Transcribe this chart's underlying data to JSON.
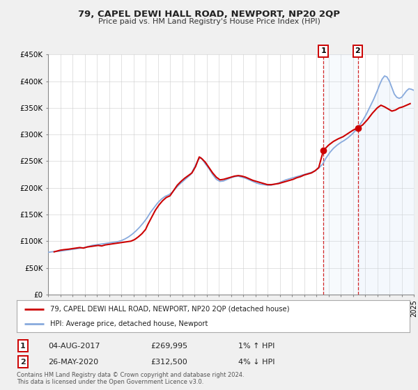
{
  "title": "79, CAPEL DEWI HALL ROAD, NEWPORT, NP20 2QP",
  "subtitle": "Price paid vs. HM Land Registry's House Price Index (HPI)",
  "background_color": "#f0f0f0",
  "plot_bg_color": "#ffffff",
  "grid_color": "#cccccc",
  "price_line_color": "#cc0000",
  "hpi_line_color": "#88aadd",
  "hpi_fill_color": "#cce0f5",
  "marker1_date_num": 2017.58,
  "marker1_price": 269995,
  "marker2_date_num": 2020.4,
  "marker2_price": 312500,
  "legend_label1": "79, CAPEL DEWI HALL ROAD, NEWPORT, NP20 2QP (detached house)",
  "legend_label2": "HPI: Average price, detached house, Newport",
  "marker1_date_str": "04-AUG-2017",
  "marker1_price_str": "£269,995",
  "marker1_hpi_str": "1% ↑ HPI",
  "marker2_date_str": "26-MAY-2020",
  "marker2_price_str": "£312,500",
  "marker2_hpi_str": "4% ↓ HPI",
  "footer1": "Contains HM Land Registry data © Crown copyright and database right 2024.",
  "footer2": "This data is licensed under the Open Government Licence v3.0.",
  "ylim": [
    0,
    450000
  ],
  "xlim": [
    1995,
    2025
  ],
  "yticks": [
    0,
    50000,
    100000,
    150000,
    200000,
    250000,
    300000,
    350000,
    400000,
    450000
  ],
  "ytick_labels": [
    "£0",
    "£50K",
    "£100K",
    "£150K",
    "£200K",
    "£250K",
    "£300K",
    "£350K",
    "£400K",
    "£450K"
  ],
  "price_data": [
    [
      1995.5,
      80000
    ],
    [
      1996.0,
      83000
    ],
    [
      1996.3,
      84000
    ],
    [
      1996.7,
      85000
    ],
    [
      1997.0,
      86000
    ],
    [
      1997.3,
      87000
    ],
    [
      1997.6,
      88000
    ],
    [
      1997.9,
      87000
    ],
    [
      1998.2,
      89000
    ],
    [
      1998.5,
      90000
    ],
    [
      1998.8,
      91000
    ],
    [
      1999.1,
      92000
    ],
    [
      1999.4,
      91000
    ],
    [
      1999.7,
      93000
    ],
    [
      2000.0,
      94000
    ],
    [
      2000.3,
      95000
    ],
    [
      2000.6,
      96000
    ],
    [
      2000.9,
      97000
    ],
    [
      2001.2,
      98000
    ],
    [
      2001.5,
      99000
    ],
    [
      2001.8,
      100000
    ],
    [
      2002.1,
      103000
    ],
    [
      2002.4,
      108000
    ],
    [
      2002.7,
      114000
    ],
    [
      2003.0,
      122000
    ],
    [
      2003.2,
      132000
    ],
    [
      2003.5,
      145000
    ],
    [
      2003.8,
      158000
    ],
    [
      2004.1,
      168000
    ],
    [
      2004.4,
      176000
    ],
    [
      2004.7,
      182000
    ],
    [
      2005.0,
      185000
    ],
    [
      2005.3,
      195000
    ],
    [
      2005.6,
      205000
    ],
    [
      2005.9,
      212000
    ],
    [
      2006.2,
      218000
    ],
    [
      2006.5,
      223000
    ],
    [
      2006.8,
      228000
    ],
    [
      2007.1,
      240000
    ],
    [
      2007.4,
      258000
    ],
    [
      2007.6,
      255000
    ],
    [
      2007.9,
      248000
    ],
    [
      2008.2,
      238000
    ],
    [
      2008.5,
      228000
    ],
    [
      2008.8,
      220000
    ],
    [
      2009.1,
      215000
    ],
    [
      2009.4,
      216000
    ],
    [
      2009.7,
      218000
    ],
    [
      2010.0,
      220000
    ],
    [
      2010.3,
      222000
    ],
    [
      2010.6,
      223000
    ],
    [
      2010.9,
      222000
    ],
    [
      2011.2,
      220000
    ],
    [
      2011.5,
      217000
    ],
    [
      2011.8,
      214000
    ],
    [
      2012.1,
      212000
    ],
    [
      2012.4,
      210000
    ],
    [
      2012.7,
      208000
    ],
    [
      2013.0,
      206000
    ],
    [
      2013.3,
      206000
    ],
    [
      2013.6,
      207000
    ],
    [
      2013.9,
      208000
    ],
    [
      2014.2,
      210000
    ],
    [
      2014.5,
      212000
    ],
    [
      2014.8,
      214000
    ],
    [
      2015.1,
      216000
    ],
    [
      2015.4,
      219000
    ],
    [
      2015.7,
      221000
    ],
    [
      2016.0,
      224000
    ],
    [
      2016.3,
      226000
    ],
    [
      2016.6,
      228000
    ],
    [
      2016.9,
      232000
    ],
    [
      2017.2,
      238000
    ],
    [
      2017.58,
      269995
    ],
    [
      2018.0,
      280000
    ],
    [
      2018.4,
      287000
    ],
    [
      2018.8,
      292000
    ],
    [
      2019.2,
      296000
    ],
    [
      2019.6,
      302000
    ],
    [
      2020.0,
      308000
    ],
    [
      2020.4,
      312500
    ],
    [
      2020.8,
      318000
    ],
    [
      2021.2,
      328000
    ],
    [
      2021.6,
      340000
    ],
    [
      2022.0,
      350000
    ],
    [
      2022.3,
      355000
    ],
    [
      2022.6,
      352000
    ],
    [
      2022.9,
      348000
    ],
    [
      2023.2,
      344000
    ],
    [
      2023.5,
      346000
    ],
    [
      2023.8,
      350000
    ],
    [
      2024.1,
      352000
    ],
    [
      2024.4,
      355000
    ],
    [
      2024.7,
      358000
    ]
  ],
  "hpi_data": [
    [
      1995.0,
      79000
    ],
    [
      1995.3,
      80000
    ],
    [
      1995.6,
      80500
    ],
    [
      1995.9,
      81000
    ],
    [
      1996.2,
      82000
    ],
    [
      1996.5,
      83000
    ],
    [
      1996.8,
      84000
    ],
    [
      1997.1,
      85000
    ],
    [
      1997.4,
      86000
    ],
    [
      1997.7,
      87000
    ],
    [
      1998.0,
      88000
    ],
    [
      1998.3,
      90000
    ],
    [
      1998.6,
      92000
    ],
    [
      1998.9,
      93000
    ],
    [
      1999.2,
      94000
    ],
    [
      1999.5,
      95000
    ],
    [
      1999.8,
      96000
    ],
    [
      2000.1,
      97000
    ],
    [
      2000.4,
      98000
    ],
    [
      2000.7,
      99000
    ],
    [
      2001.0,
      101000
    ],
    [
      2001.3,
      104000
    ],
    [
      2001.6,
      108000
    ],
    [
      2001.9,
      113000
    ],
    [
      2002.2,
      119000
    ],
    [
      2002.5,
      126000
    ],
    [
      2002.8,
      134000
    ],
    [
      2003.1,
      143000
    ],
    [
      2003.4,
      154000
    ],
    [
      2003.7,
      163000
    ],
    [
      2004.0,
      172000
    ],
    [
      2004.3,
      179000
    ],
    [
      2004.6,
      184000
    ],
    [
      2004.9,
      187000
    ],
    [
      2005.2,
      192000
    ],
    [
      2005.5,
      200000
    ],
    [
      2005.8,
      207000
    ],
    [
      2006.1,
      213000
    ],
    [
      2006.4,
      219000
    ],
    [
      2006.7,
      225000
    ],
    [
      2007.0,
      238000
    ],
    [
      2007.3,
      252000
    ],
    [
      2007.5,
      257000
    ],
    [
      2007.7,
      252000
    ],
    [
      2007.9,
      245000
    ],
    [
      2008.2,
      236000
    ],
    [
      2008.5,
      225000
    ],
    [
      2008.8,
      216000
    ],
    [
      2009.1,
      212000
    ],
    [
      2009.4,
      213000
    ],
    [
      2009.7,
      216000
    ],
    [
      2010.0,
      219000
    ],
    [
      2010.3,
      221000
    ],
    [
      2010.6,
      222000
    ],
    [
      2010.9,
      220000
    ],
    [
      2011.2,
      218000
    ],
    [
      2011.5,
      215000
    ],
    [
      2011.8,
      212000
    ],
    [
      2012.1,
      209000
    ],
    [
      2012.4,
      207000
    ],
    [
      2012.7,
      206000
    ],
    [
      2013.0,
      205000
    ],
    [
      2013.3,
      205000
    ],
    [
      2013.6,
      207000
    ],
    [
      2013.9,
      209000
    ],
    [
      2014.2,
      212000
    ],
    [
      2014.5,
      215000
    ],
    [
      2014.8,
      217000
    ],
    [
      2015.1,
      219000
    ],
    [
      2015.4,
      221000
    ],
    [
      2015.7,
      223000
    ],
    [
      2016.0,
      225000
    ],
    [
      2016.3,
      227000
    ],
    [
      2016.6,
      229000
    ],
    [
      2016.9,
      232000
    ],
    [
      2017.2,
      237000
    ],
    [
      2017.5,
      244000
    ],
    [
      2017.8,
      256000
    ],
    [
      2018.1,
      266000
    ],
    [
      2018.4,
      274000
    ],
    [
      2018.7,
      280000
    ],
    [
      2019.0,
      285000
    ],
    [
      2019.3,
      289000
    ],
    [
      2019.6,
      294000
    ],
    [
      2019.9,
      300000
    ],
    [
      2020.2,
      307000
    ],
    [
      2020.5,
      316000
    ],
    [
      2020.8,
      326000
    ],
    [
      2021.1,
      338000
    ],
    [
      2021.4,
      352000
    ],
    [
      2021.7,
      366000
    ],
    [
      2022.0,
      382000
    ],
    [
      2022.2,
      394000
    ],
    [
      2022.4,
      404000
    ],
    [
      2022.6,
      410000
    ],
    [
      2022.8,
      408000
    ],
    [
      2023.0,
      400000
    ],
    [
      2023.2,
      388000
    ],
    [
      2023.4,
      376000
    ],
    [
      2023.6,
      370000
    ],
    [
      2023.8,
      368000
    ],
    [
      2024.0,
      370000
    ],
    [
      2024.2,
      376000
    ],
    [
      2024.4,
      382000
    ],
    [
      2024.6,
      386000
    ],
    [
      2024.8,
      385000
    ],
    [
      2025.0,
      383000
    ]
  ]
}
